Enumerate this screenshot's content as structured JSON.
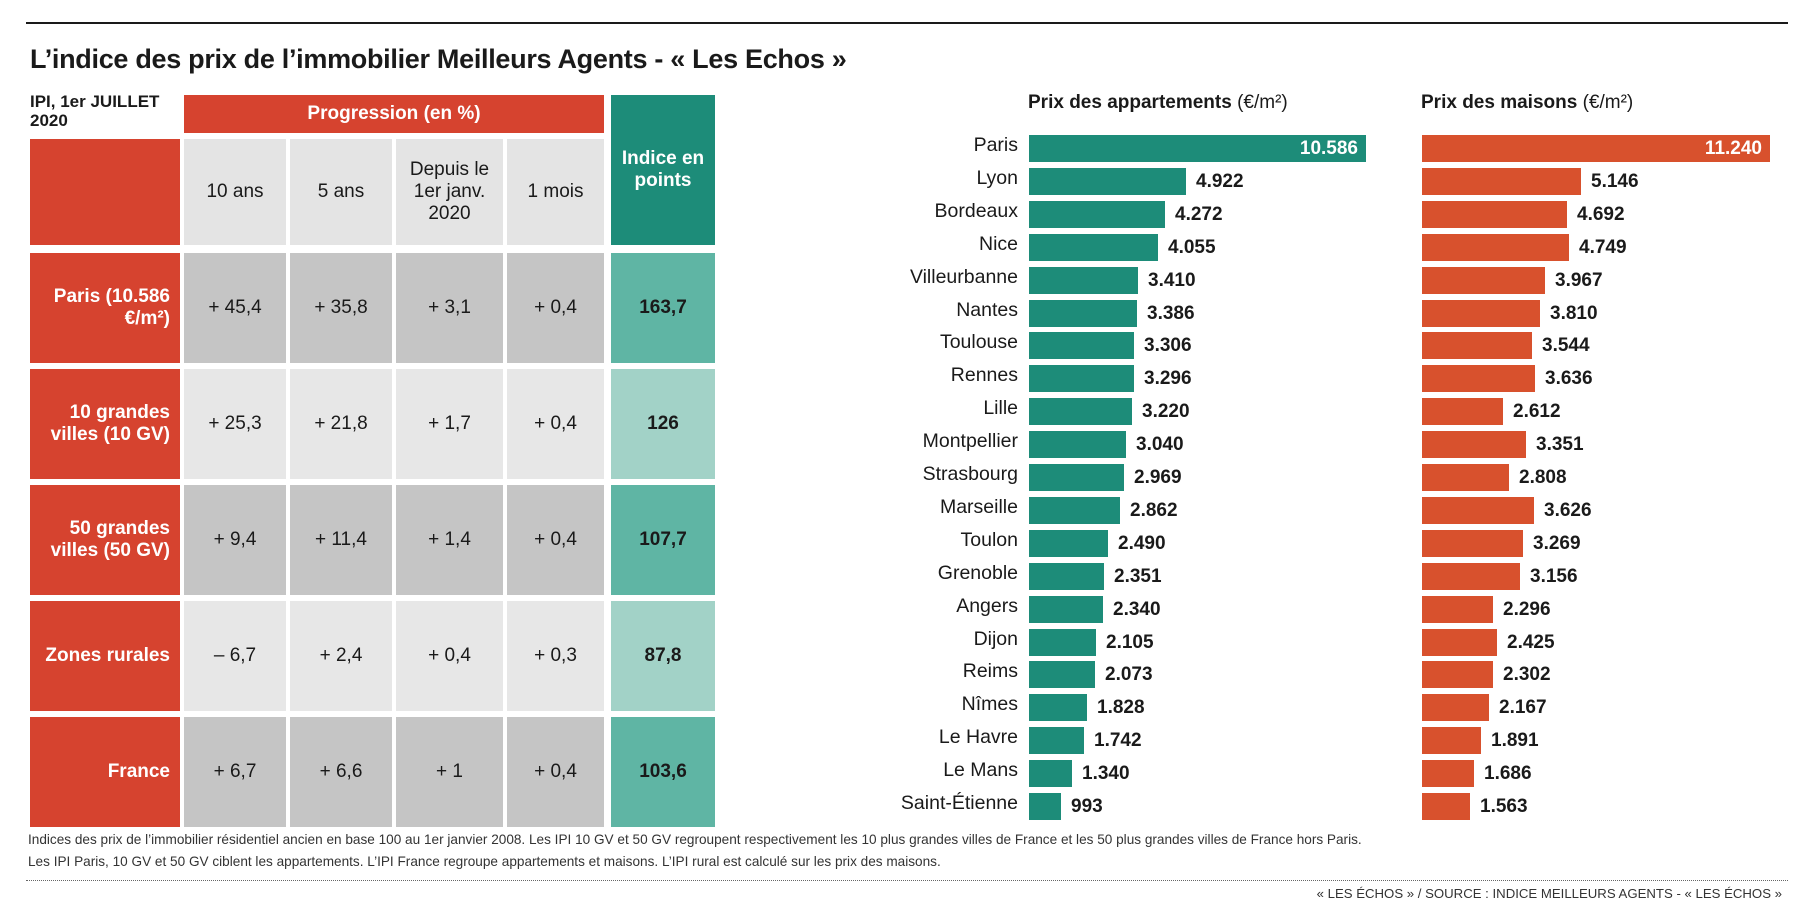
{
  "title": "L’indice des prix de l’immobilier Meilleurs Agents - « Les Echos »",
  "table": {
    "corner_label": "IPI, 1er JUILLET 2020",
    "group_header": "Progression (en %)",
    "index_header": "Indice en points",
    "columns": [
      "10 ans",
      "5 ans",
      "Depuis le 1er janv. 2020",
      "1 mois"
    ],
    "rows": [
      {
        "label": "Paris (10.586 €/m²)",
        "values": [
          "+ 45,4",
          "+ 35,8",
          "+ 3,1",
          "+ 0,4"
        ],
        "index": "163,7"
      },
      {
        "label": "10 grandes villes (10 GV)",
        "values": [
          "+ 25,3",
          "+ 21,8",
          "+ 1,7",
          "+ 0,4"
        ],
        "index": "126"
      },
      {
        "label": "50 grandes villes (50 GV)",
        "values": [
          "+ 9,4",
          "+ 11,4",
          "+ 1,4",
          "+ 0,4"
        ],
        "index": "107,7"
      },
      {
        "label": "Zones rurales",
        "values": [
          "– 6,7",
          "+ 2,4",
          "+ 0,4",
          "+ 0,3"
        ],
        "index": "87,8"
      },
      {
        "label": "France",
        "values": [
          "+ 6,7",
          "+ 6,6",
          "+ 1",
          "+ 0,4"
        ],
        "index": "103,6"
      }
    ]
  },
  "colors": {
    "red": "#d6432f",
    "teal_dark": "#1d8c79",
    "teal_bar": "#1d8c79",
    "orange_bar": "#d8512d"
  },
  "chart_data": [
    {
      "type": "bar",
      "orientation": "horizontal",
      "title": "Prix des appartements",
      "unit": "(€/m²)",
      "categories": [
        "Paris",
        "Lyon",
        "Bordeaux",
        "Nice",
        "Villeurbanne",
        "Nantes",
        "Toulouse",
        "Rennes",
        "Lille",
        "Montpellier",
        "Strasbourg",
        "Marseille",
        "Toulon",
        "Grenoble",
        "Angers",
        "Dijon",
        "Reims",
        "Nîmes",
        "Le Havre",
        "Le Mans",
        "Saint-Étienne"
      ],
      "values": [
        10586,
        4922,
        4272,
        4055,
        3410,
        3386,
        3306,
        3296,
        3220,
        3040,
        2969,
        2862,
        2490,
        2351,
        2340,
        2105,
        2073,
        1828,
        1742,
        1340,
        993
      ],
      "labels": [
        "10.586",
        "4.922",
        "4.272",
        "4.055",
        "3.410",
        "3.386",
        "3.306",
        "3.296",
        "3.220",
        "3.040",
        "2.969",
        "2.862",
        "2.490",
        "2.351",
        "2.340",
        "2.105",
        "2.073",
        "1.828",
        "1.742",
        "1.340",
        "993"
      ],
      "xlim": [
        0,
        10586
      ]
    },
    {
      "type": "bar",
      "orientation": "horizontal",
      "title": "Prix des maisons",
      "unit": "(€/m²)",
      "categories": [
        "Paris",
        "Lyon",
        "Bordeaux",
        "Nice",
        "Villeurbanne",
        "Nantes",
        "Toulouse",
        "Rennes",
        "Lille",
        "Montpellier",
        "Strasbourg",
        "Marseille",
        "Toulon",
        "Grenoble",
        "Angers",
        "Dijon",
        "Reims",
        "Nîmes",
        "Le Havre",
        "Le Mans",
        "Saint-Étienne"
      ],
      "values": [
        11240,
        5146,
        4692,
        4749,
        3967,
        3810,
        3544,
        3636,
        2612,
        3351,
        2808,
        3626,
        3269,
        3156,
        2296,
        2425,
        2302,
        2167,
        1891,
        1686,
        1563
      ],
      "labels": [
        "11.240",
        "5.146",
        "4.692",
        "4.749",
        "3.967",
        "3.810",
        "3.544",
        "3.636",
        "2.612",
        "3.351",
        "2.808",
        "3.626",
        "3.269",
        "3.156",
        "2.296",
        "2.425",
        "2.302",
        "2.167",
        "1.891",
        "1.686",
        "1.563"
      ],
      "xlim": [
        0,
        11240
      ]
    }
  ],
  "footnote_lines": [
    "Indices des prix de l’immobilier résidentiel ancien en base 100 au 1er janvier 2008. Les IPI 10 GV et 50 GV regroupent respectivement les 10 plus grandes villes de France et les 50 plus grandes villes de France hors Paris.",
    "Les IPI Paris, 10 GV et 50 GV ciblent les appartements. L’IPI France regroupe appartements et maisons. L’IPI rural est calculé sur les prix des maisons."
  ],
  "source": "« LES ÉCHOS » / SOURCE : INDICE MEILLEURS AGENTS - « LES ÉCHOS »"
}
